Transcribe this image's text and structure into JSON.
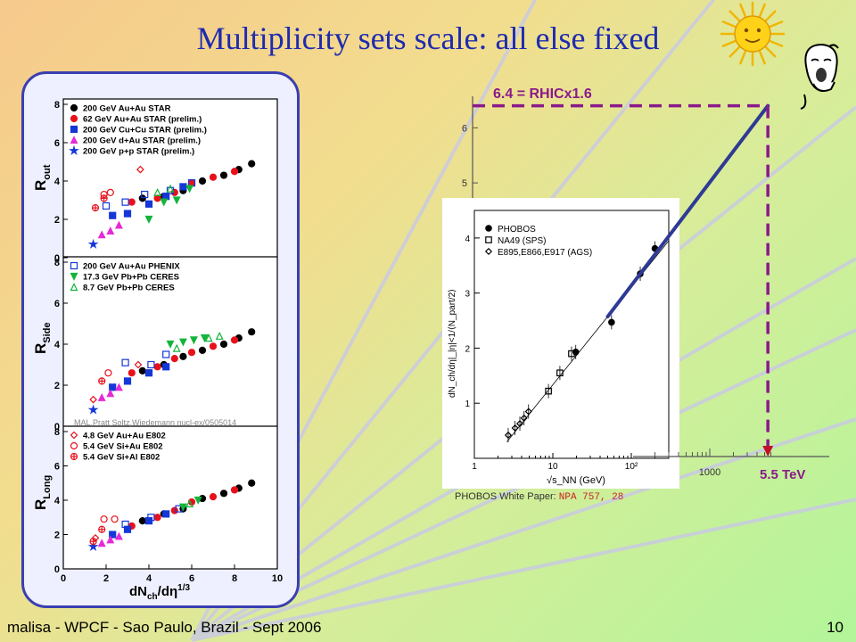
{
  "slide": {
    "title": "Multiplicity sets scale: all else fixed",
    "footer_left": "malisa - WPCF - Sao Paulo, Brazil - Sept 2006",
    "page_number": "10",
    "colors": {
      "title": "#1e2bb0",
      "frame": "#3a3fb0",
      "dash": "#8a1a8a",
      "fit_line": "#2e3a94"
    },
    "icons": [
      "sun-face-icon",
      "yawning-face-icon"
    ]
  },
  "left_chart": {
    "type": "scatter",
    "citation": "MAL,Pratt Soltz,Wiedemann nucl-ex/0505014",
    "xlabel_main": "dN",
    "xlabel_sub": "ch",
    "xlabel_tail": "/dη",
    "xlabel_sup": "1/3",
    "xlim": [
      0,
      10
    ],
    "x_ticks": [
      "0",
      "2",
      "4",
      "6",
      "8",
      "10"
    ],
    "panels": [
      {
        "ylabel_main": "R",
        "ylabel_sub": "out",
        "ylim": [
          0,
          8
        ],
        "y_ticks": [
          "0",
          "2",
          "4",
          "6",
          "8"
        ],
        "legend": [
          {
            "label": "200 GeV Au+Au STAR",
            "marker": "circle-filled",
            "color": "#000000"
          },
          {
            "label": " 62 GeV Au+Au STAR (prelim.)",
            "marker": "circle-filled",
            "color": "#e8111b"
          },
          {
            "label": "200 GeV Cu+Cu STAR (prelim.)",
            "marker": "square-filled",
            "color": "#1537d8"
          },
          {
            "label": "200 GeV d+Au STAR (prelim.)",
            "marker": "triangle-filled",
            "color": "#e52ad6"
          },
          {
            "label": "200 GeV p+p STAR (prelim.)",
            "marker": "star-filled",
            "color": "#1537d8"
          }
        ],
        "series": [
          {
            "marker": "circle-filled",
            "color": "#000000",
            "x": [
              3.7,
              4.7,
              5.6,
              6.5,
              7.5,
              8.2,
              8.8
            ],
            "y": [
              3.1,
              3.2,
              3.5,
              4.0,
              4.3,
              4.6,
              4.9
            ]
          },
          {
            "marker": "circle-filled",
            "color": "#e8111b",
            "x": [
              3.2,
              4.4,
              5.2,
              6.0,
              7.0,
              8.0
            ],
            "y": [
              2.9,
              3.1,
              3.4,
              3.9,
              4.2,
              4.5
            ]
          },
          {
            "marker": "square-filled",
            "color": "#1537d8",
            "x": [
              2.3,
              3.0,
              4.0,
              4.8,
              5.6
            ],
            "y": [
              2.2,
              2.3,
              2.8,
              3.2,
              3.7
            ]
          },
          {
            "marker": "triangle-filled",
            "color": "#e52ad6",
            "x": [
              1.8,
              2.2,
              2.6
            ],
            "y": [
              1.2,
              1.4,
              1.7
            ]
          },
          {
            "marker": "star-filled",
            "color": "#1537d8",
            "x": [
              1.4
            ],
            "y": [
              0.7
            ]
          },
          {
            "marker": "square-open",
            "color": "#1537d8",
            "x": [
              2.0,
              2.9,
              3.8,
              5.0,
              6.0
            ],
            "y": [
              2.7,
              2.9,
              3.3,
              3.5,
              3.9
            ]
          },
          {
            "marker": "triangle-down-filled",
            "color": "#12b43a",
            "x": [
              4.0,
              4.7,
              5.3,
              5.9
            ],
            "y": [
              2.0,
              2.9,
              3.0,
              3.6
            ]
          },
          {
            "marker": "triangle-open",
            "color": "#12b43a",
            "x": [
              4.4,
              5.0
            ],
            "y": [
              3.4,
              3.6
            ]
          },
          {
            "marker": "diamond-open",
            "color": "#e8111b",
            "x": [
              3.6
            ],
            "y": [
              4.6
            ]
          },
          {
            "marker": "circle-open",
            "color": "#e8111b",
            "x": [
              1.9,
              2.2
            ],
            "y": [
              3.3,
              3.4
            ]
          },
          {
            "marker": "cross-open",
            "color": "#e8111b",
            "x": [
              1.5,
              1.9
            ],
            "y": [
              2.6,
              3.1
            ]
          }
        ]
      },
      {
        "ylabel_main": "R",
        "ylabel_sub": "Side",
        "ylim": [
          0,
          8
        ],
        "y_ticks": [
          "0",
          "2",
          "4",
          "6",
          "8"
        ],
        "legend": [
          {
            "label": "200 GeV Au+Au PHENIX",
            "marker": "square-open",
            "color": "#1537d8"
          },
          {
            "label": "17.3 GeV Pb+Pb CERES",
            "marker": "triangle-down-filled",
            "color": "#12b43a"
          },
          {
            "label": "8.7 GeV Pb+Pb CERES",
            "marker": "triangle-open",
            "color": "#12b43a"
          }
        ],
        "series": [
          {
            "marker": "circle-filled",
            "color": "#000000",
            "x": [
              3.7,
              4.7,
              5.6,
              6.5,
              7.5,
              8.2,
              8.8
            ],
            "y": [
              2.7,
              3.0,
              3.4,
              3.7,
              4.0,
              4.3,
              4.6
            ]
          },
          {
            "marker": "circle-filled",
            "color": "#e8111b",
            "x": [
              3.2,
              4.4,
              5.2,
              6.0,
              7.0,
              8.0
            ],
            "y": [
              2.6,
              2.9,
              3.3,
              3.6,
              3.9,
              4.2
            ]
          },
          {
            "marker": "square-filled",
            "color": "#1537d8",
            "x": [
              2.3,
              3.0,
              4.0,
              4.8
            ],
            "y": [
              1.9,
              2.2,
              2.6,
              2.9
            ]
          },
          {
            "marker": "triangle-filled",
            "color": "#e52ad6",
            "x": [
              1.8,
              2.2,
              2.6
            ],
            "y": [
              1.4,
              1.6,
              1.9
            ]
          },
          {
            "marker": "star-filled",
            "color": "#1537d8",
            "x": [
              1.4
            ],
            "y": [
              0.8
            ]
          },
          {
            "marker": "square-open",
            "color": "#1537d8",
            "x": [
              2.9,
              4.1,
              4.8
            ],
            "y": [
              3.1,
              3.0,
              3.5
            ]
          },
          {
            "marker": "triangle-down-filled",
            "color": "#12b43a",
            "x": [
              5.0,
              5.6,
              6.1,
              6.6
            ],
            "y": [
              4.0,
              4.1,
              4.2,
              4.3
            ]
          },
          {
            "marker": "triangle-open",
            "color": "#12b43a",
            "x": [
              5.3,
              6.8,
              7.3
            ],
            "y": [
              3.8,
              4.3,
              4.4
            ]
          },
          {
            "marker": "diamond-open",
            "color": "#e8111b",
            "x": [
              1.4,
              3.5
            ],
            "y": [
              1.3,
              3.0
            ]
          },
          {
            "marker": "circle-open",
            "color": "#e8111b",
            "x": [
              2.1
            ],
            "y": [
              2.6
            ]
          },
          {
            "marker": "cross-open",
            "color": "#e8111b",
            "x": [
              1.8
            ],
            "y": [
              2.2
            ]
          }
        ]
      },
      {
        "ylabel_main": "R",
        "ylabel_sub": "Long",
        "ylim": [
          0,
          8
        ],
        "y_ticks": [
          "0",
          "2",
          "4",
          "6",
          "8"
        ],
        "legend": [
          {
            "label": "4.8 GeV Au+Au E802",
            "marker": "diamond-open",
            "color": "#e8111b"
          },
          {
            "label": "5.4 GeV Si+Au E802",
            "marker": "circle-open",
            "color": "#e8111b"
          },
          {
            "label": "5.4 GeV Si+Al E802",
            "marker": "cross-open",
            "color": "#e8111b"
          }
        ],
        "series": [
          {
            "marker": "circle-filled",
            "color": "#000000",
            "x": [
              3.7,
              4.7,
              5.6,
              6.5,
              7.5,
              8.2,
              8.8
            ],
            "y": [
              2.8,
              3.2,
              3.5,
              4.1,
              4.4,
              4.7,
              5.0
            ]
          },
          {
            "marker": "circle-filled",
            "color": "#e8111b",
            "x": [
              3.2,
              4.4,
              5.2,
              6.0,
              7.0,
              8.0
            ],
            "y": [
              2.5,
              3.0,
              3.4,
              3.9,
              4.2,
              4.6
            ]
          },
          {
            "marker": "square-filled",
            "color": "#1537d8",
            "x": [
              2.3,
              3.0,
              4.0,
              4.8
            ],
            "y": [
              2.0,
              2.3,
              2.8,
              3.2
            ]
          },
          {
            "marker": "triangle-filled",
            "color": "#e52ad6",
            "x": [
              1.8,
              2.2,
              2.6
            ],
            "y": [
              1.5,
              1.7,
              1.9
            ]
          },
          {
            "marker": "star-filled",
            "color": "#1537d8",
            "x": [
              1.4
            ],
            "y": [
              1.3
            ]
          },
          {
            "marker": "square-open",
            "color": "#1537d8",
            "x": [
              2.9,
              4.1,
              5.4
            ],
            "y": [
              2.6,
              3.0,
              3.5
            ]
          },
          {
            "marker": "triangle-down-filled",
            "color": "#12b43a",
            "x": [
              5.6,
              6.3
            ],
            "y": [
              3.6,
              4.0
            ]
          },
          {
            "marker": "triangle-open",
            "color": "#12b43a",
            "x": [
              5.9
            ],
            "y": [
              3.8
            ]
          },
          {
            "marker": "diamond-open",
            "color": "#e8111b",
            "x": [
              1.5
            ],
            "y": [
              1.8
            ]
          },
          {
            "marker": "circle-open",
            "color": "#e8111b",
            "x": [
              1.9,
              2.4
            ],
            "y": [
              2.9,
              2.9
            ]
          },
          {
            "marker": "cross-open",
            "color": "#e8111b",
            "x": [
              1.4,
              1.8
            ],
            "y": [
              1.6,
              2.3
            ]
          }
        ]
      }
    ]
  },
  "phobos_chart": {
    "type": "scatter",
    "xlabel": "√s_NN (GeV)",
    "ylabel": "dN_ch/dη|_|η|<1/⟨N_part/2⟩",
    "x_scale": "log",
    "xlim": [
      1,
      300
    ],
    "ylim": [
      0,
      4.5
    ],
    "x_ticks": [
      "1",
      "10",
      "10²"
    ],
    "y_ticks": [
      "1",
      "2",
      "3",
      "4"
    ],
    "legend": [
      {
        "label": "PHOBOS",
        "marker": "circle-filled"
      },
      {
        "label": "NA49 (SPS)",
        "marker": "square-open"
      },
      {
        "label": "E895,E866,E917 (AGS)",
        "marker": "diamond-open"
      }
    ],
    "fit_line": {
      "x": [
        2.6,
        300
      ],
      "y": [
        0.3,
        3.95
      ]
    },
    "series": [
      {
        "name": "PHOBOS",
        "marker": "circle-filled",
        "x": [
          19.6,
          56,
          130,
          200
        ],
        "y": [
          1.93,
          2.47,
          3.35,
          3.81
        ]
      },
      {
        "name": "NA49 (SPS)",
        "marker": "square-open",
        "x": [
          8.8,
          12.3,
          17.3
        ],
        "y": [
          1.22,
          1.55,
          1.9
        ]
      },
      {
        "name": "E895,E866,E917 (AGS)",
        "marker": "diamond-open",
        "x": [
          2.7,
          3.3,
          3.8,
          4.3,
          4.9
        ],
        "y": [
          0.42,
          0.55,
          0.63,
          0.73,
          0.85
        ]
      }
    ],
    "caption_prefix": "PHOBOS White Paper: ",
    "caption_ref": "NPA 757, 28"
  },
  "extrapolation": {
    "y_ticks": [
      "5",
      "6"
    ],
    "x_tick": "1000",
    "y_label": "6.4 = RHICx1.6",
    "x_label": "5.5 TeV",
    "extrapolated_y": 6.4,
    "extrapolated_x_tev": 5.5
  }
}
